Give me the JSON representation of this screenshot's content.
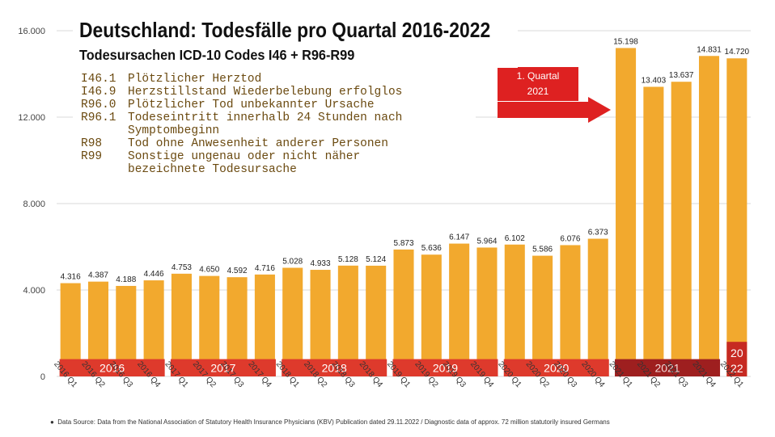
{
  "chart_data": {
    "type": "bar",
    "title": "Deutschland: Todesfälle pro Quartal 2016-2022",
    "subtitle": "Todesursachen ICD-10 Codes I46 + R96-R99",
    "ylim": [
      0,
      16000
    ],
    "yticks": [
      {
        "value": 0,
        "label": "0"
      },
      {
        "value": 4000,
        "label": "4.000"
      },
      {
        "value": 8000,
        "label": "8.000"
      },
      {
        "value": 12000,
        "label": "12.000"
      },
      {
        "value": 16000,
        "label": "16.000"
      }
    ],
    "grid": true,
    "categories": [
      "2016 Q1",
      "2016 Q2",
      "2016 Q3",
      "2016 Q4",
      "2017 Q1",
      "2017 Q2",
      "2017 Q3",
      "2017 Q4",
      "2018 Q1",
      "2018 Q2",
      "2018 Q3",
      "2018 Q4",
      "2019 Q1",
      "2019 Q2",
      "2019 Q3",
      "2019 Q4",
      "2020 Q1",
      "2020 Q2",
      "2020 Q3",
      "2020 Q4",
      "2021 Q1",
      "2021 Q2",
      "2021 Q3",
      "2021 Q4",
      "2022 Q1"
    ],
    "values": [
      4316,
      4387,
      4188,
      4446,
      4753,
      4650,
      4592,
      4716,
      5028,
      4933,
      5128,
      5124,
      5873,
      5636,
      6147,
      5964,
      6102,
      5586,
      6076,
      6373,
      15198,
      13403,
      13637,
      14831,
      14720
    ],
    "value_labels": [
      "4.316",
      "4.387",
      "4.188",
      "4.446",
      "4.753",
      "4.650",
      "4.592",
      "4.716",
      "5.028",
      "4.933",
      "5.128",
      "5.124",
      "5.873",
      "5.636",
      "6.147",
      "5.964",
      "6.102",
      "5.586",
      "6.076",
      "6.373",
      "15.198",
      "13.403",
      "13.637",
      "14.831",
      "14.720"
    ],
    "year_bands": [
      {
        "label": "2016",
        "start": 0,
        "end": 3,
        "color": "#de3a2c",
        "text_color": "#ffffff"
      },
      {
        "label": "2017",
        "start": 4,
        "end": 7,
        "color": "#de3a2c",
        "text_color": "#ffffff"
      },
      {
        "label": "2018",
        "start": 8,
        "end": 11,
        "color": "#de3a2c",
        "text_color": "#ffffff"
      },
      {
        "label": "2019",
        "start": 12,
        "end": 15,
        "color": "#de3a2c",
        "text_color": "#ffffff"
      },
      {
        "label": "2020",
        "start": 16,
        "end": 19,
        "color": "#de3a2c",
        "text_color": "#ffffff"
      },
      {
        "label": "2021",
        "start": 20,
        "end": 23,
        "color": "#9e1f1f",
        "text_color": "#f3d8d8"
      }
    ],
    "band_value": 800,
    "last_band": {
      "line1": "20",
      "line2": "22",
      "start": 24,
      "value": 1600,
      "color": "#c62a22"
    },
    "annotation": {
      "line1": "1. Quartal",
      "line2": "2021",
      "target_index": 20,
      "color": "#de2121"
    },
    "bar_color": "#f2a92e",
    "legend_entries": [
      {
        "code": "I46.1",
        "desc": "Plötzlicher Herztod"
      },
      {
        "code": "I46.9",
        "desc": "Herzstillstand Wiederbelebung erfolglos"
      },
      {
        "code": "R96.0",
        "desc": "Plötzlicher Tod unbekannter Ursache"
      },
      {
        "code": "R96.1",
        "desc": "Todeseintritt innerhalb 24 Stunden nach"
      },
      {
        "code": "",
        "desc": "Symptombeginn"
      },
      {
        "code": "R98",
        "desc": "Tod ohne Anwesenheit anderer Personen"
      },
      {
        "code": "R99",
        "desc": "Sonstige ungenau oder nicht näher"
      },
      {
        "code": "",
        "desc": "bezeichnete Todesursache"
      }
    ],
    "source": "Data Source: Data from the National Association of Statutory Health Insurance Physicians (KBV) Publication dated 29.11.2022 / Diagnostic data of approx. 72 million statutorily insured Germans"
  }
}
